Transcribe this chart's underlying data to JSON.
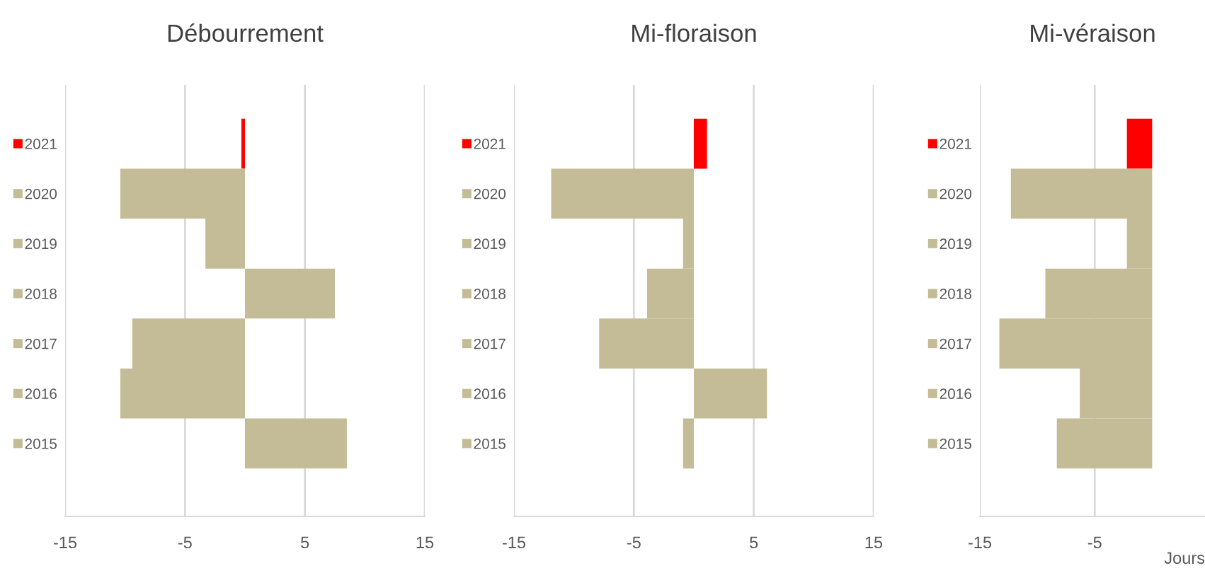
{
  "chart_data": [
    {
      "type": "bar",
      "orientation": "horizontal",
      "title": "Débourrement",
      "categories": [
        "2021",
        "2020",
        "2019",
        "2018",
        "2017",
        "2016",
        "2015"
      ],
      "values": [
        -0.3,
        -10.4,
        -3.3,
        7.5,
        -9.4,
        -10.4,
        8.5
      ],
      "colors": [
        "#ff0000",
        "#c4bc96",
        "#c4bc96",
        "#c4bc96",
        "#c4bc96",
        "#c4bc96",
        "#c4bc96"
      ],
      "xlim": [
        -15,
        15
      ],
      "xticks": [
        -15,
        -5,
        5,
        15
      ],
      "grid": "x"
    },
    {
      "type": "bar",
      "orientation": "horizontal",
      "title": "Mi-floraison",
      "categories": [
        "2021",
        "2020",
        "2019",
        "2018",
        "2017",
        "2016",
        "2015"
      ],
      "values": [
        1.1,
        -11.9,
        -0.9,
        -3.9,
        -7.9,
        6.1,
        -0.9
      ],
      "colors": [
        "#ff0000",
        "#c4bc96",
        "#c4bc96",
        "#c4bc96",
        "#c4bc96",
        "#c4bc96",
        "#c4bc96"
      ],
      "xlim": [
        -15,
        15
      ],
      "xticks": [
        -15,
        -5,
        5,
        15
      ],
      "grid": "x"
    },
    {
      "type": "bar",
      "orientation": "horizontal",
      "title": "Mi-véraison",
      "xlabel": "Jours",
      "categories": [
        "2021",
        "2020",
        "2019",
        "2018",
        "2017",
        "2016",
        "2015"
      ],
      "values": [
        -2.2,
        -12.3,
        -2.2,
        -9.3,
        -13.3,
        -6.3,
        -8.3
      ],
      "colors": [
        "#ff0000",
        "#c4bc96",
        "#c4bc96",
        "#c4bc96",
        "#c4bc96",
        "#c4bc96",
        "#c4bc96"
      ],
      "xlim": [
        -15,
        4.6
      ],
      "xticks": [
        -15,
        -5
      ],
      "grid": "x"
    }
  ]
}
